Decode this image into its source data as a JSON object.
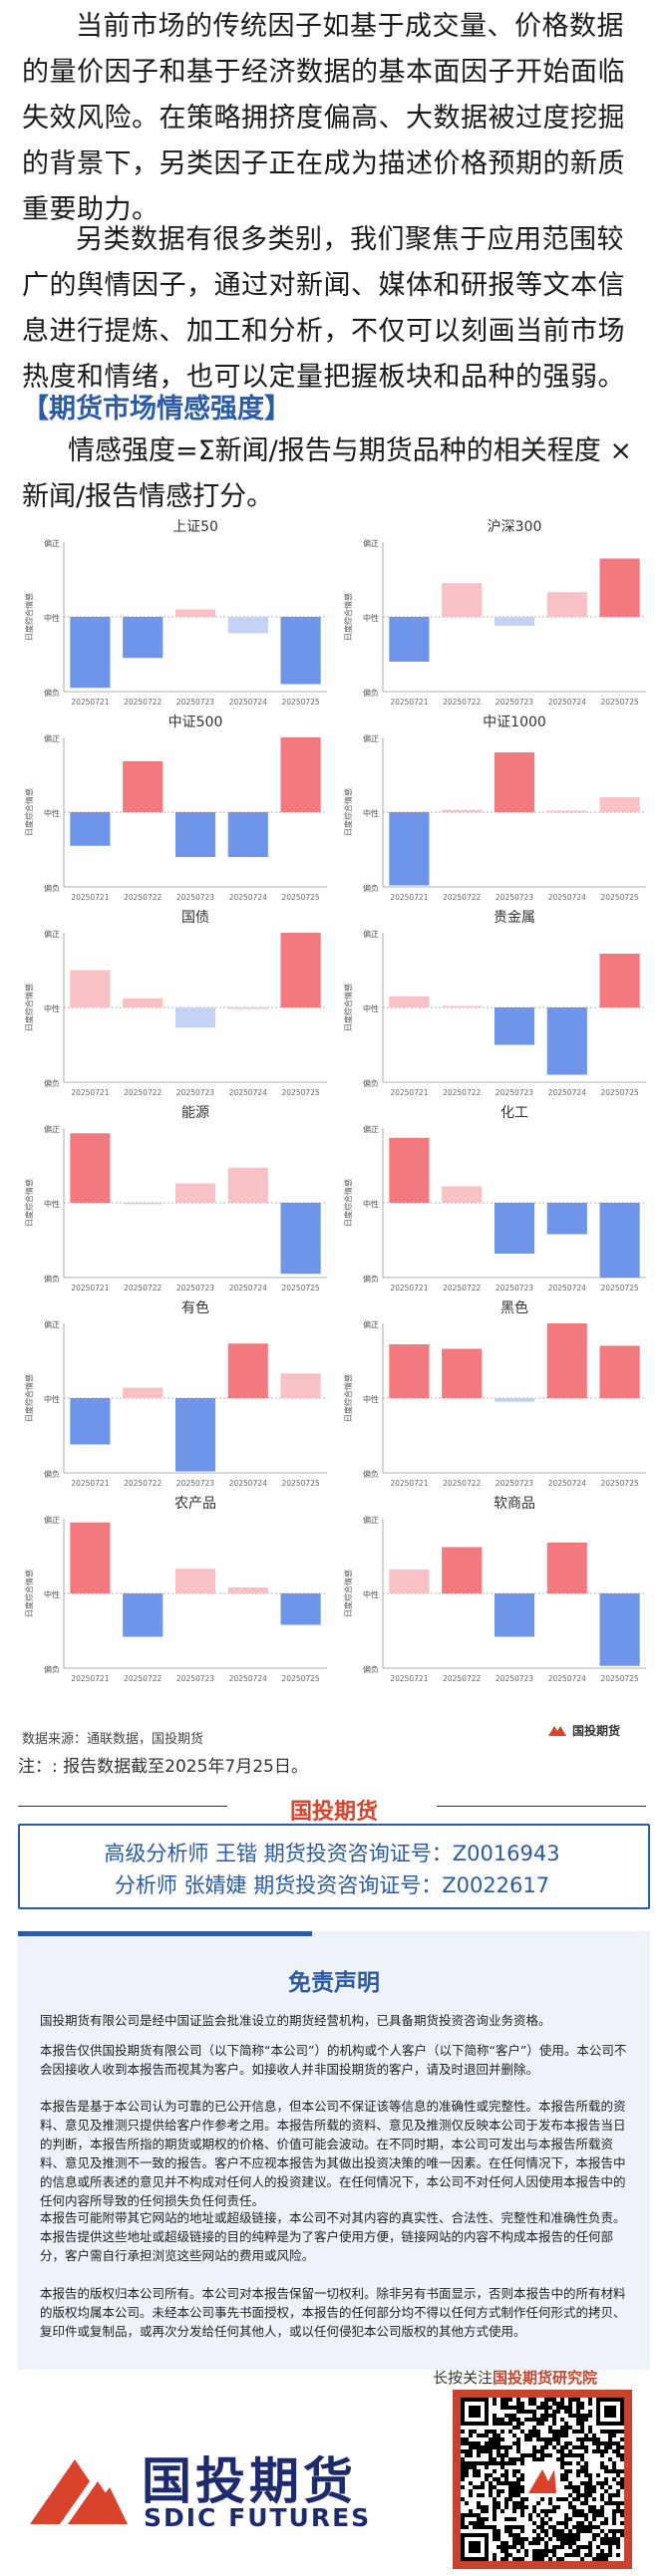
{
  "intro": {
    "p1": "当前市场的传统因子如基于成交量、价格数据的量价因子和基于经济数据的基本面因子开始面临失效风险。在策略拥挤度偏高、大数据被过度挖掘的背景下，另类因子正在成为描述价格预期的新质重要助力。",
    "p2": "另类数据有很多类别，我们聚焦于应用范围较广的舆情因子，通过对新闻、媒体和研报等文本信息进行提炼、加工和分析，不仅可以刻画当前市场热度和情绪，也可以定量把握板块和品种的强弱。"
  },
  "section": {
    "title": "【期货市场情感强度】",
    "formula": "情感强度=Σ新闻/报告与期货品种的相关程度 × 新闻/报告情感打分。"
  },
  "colors": {
    "pos_strong": "#f27a7e",
    "pos_light": "#f7c1c5",
    "neg_strong": "#6e95ea",
    "neg_light": "#c4d3f5"
  },
  "chart_labels": {
    "ylabel": "日度综合情感",
    "y_top": "偏正",
    "y_mid": "中性",
    "y_bottom": "偏负"
  },
  "chart_data": [
    {
      "type": "bar",
      "title": "上证50",
      "categories": [
        "20250721",
        "20250722",
        "20250723",
        "20250724",
        "20250725"
      ],
      "values": [
        -0.95,
        -0.55,
        0.1,
        -0.22,
        -0.9
      ],
      "ylim": [
        -1,
        1
      ]
    },
    {
      "type": "bar",
      "title": "沪深300",
      "categories": [
        "20250721",
        "20250722",
        "20250723",
        "20250724",
        "20250725"
      ],
      "values": [
        -0.6,
        0.45,
        -0.12,
        0.33,
        0.78
      ],
      "ylim": [
        -1,
        1
      ]
    },
    {
      "type": "bar",
      "title": "中证500",
      "categories": [
        "20250721",
        "20250722",
        "20250723",
        "20250724",
        "20250725"
      ],
      "values": [
        -0.45,
        0.68,
        -0.6,
        -0.6,
        1.0
      ],
      "ylim": [
        -1,
        1
      ]
    },
    {
      "type": "bar",
      "title": "中证1000",
      "categories": [
        "20250721",
        "20250722",
        "20250723",
        "20250724",
        "20250725"
      ],
      "values": [
        -0.98,
        0.03,
        0.8,
        0.02,
        0.2
      ],
      "ylim": [
        -1,
        1
      ]
    },
    {
      "type": "bar",
      "title": "国债",
      "categories": [
        "20250721",
        "20250722",
        "20250723",
        "20250724",
        "20250725"
      ],
      "values": [
        0.5,
        0.12,
        -0.27,
        0.0,
        1.0
      ],
      "ylim": [
        -1,
        1
      ]
    },
    {
      "type": "bar",
      "title": "贵金属",
      "categories": [
        "20250721",
        "20250722",
        "20250723",
        "20250724",
        "20250725"
      ],
      "values": [
        0.15,
        0.02,
        -0.5,
        -0.9,
        0.72
      ],
      "ylim": [
        -1,
        1
      ]
    },
    {
      "type": "bar",
      "title": "能源",
      "categories": [
        "20250721",
        "20250722",
        "20250723",
        "20250724",
        "20250725"
      ],
      "values": [
        0.93,
        -0.02,
        0.26,
        0.47,
        -0.95
      ],
      "ylim": [
        -1,
        1
      ]
    },
    {
      "type": "bar",
      "title": "化工",
      "categories": [
        "20250721",
        "20250722",
        "20250723",
        "20250724",
        "20250725"
      ],
      "values": [
        0.87,
        0.22,
        -0.68,
        -0.42,
        -1.0
      ],
      "ylim": [
        -1,
        1
      ]
    },
    {
      "type": "bar",
      "title": "有色",
      "categories": [
        "20250721",
        "20250722",
        "20250723",
        "20250724",
        "20250725"
      ],
      "values": [
        -0.62,
        0.14,
        -0.98,
        0.73,
        0.33
      ],
      "ylim": [
        -1,
        1
      ]
    },
    {
      "type": "bar",
      "title": "黑色",
      "categories": [
        "20250721",
        "20250722",
        "20250723",
        "20250724",
        "20250725"
      ],
      "values": [
        0.72,
        0.66,
        -0.05,
        1.0,
        0.7
      ],
      "ylim": [
        -1,
        1
      ]
    },
    {
      "type": "bar",
      "title": "农产品",
      "categories": [
        "20250721",
        "20250722",
        "20250723",
        "20250724",
        "20250725"
      ],
      "values": [
        0.95,
        -0.58,
        0.33,
        0.08,
        -0.42
      ],
      "ylim": [
        -1,
        1
      ]
    },
    {
      "type": "bar",
      "title": "软商品",
      "categories": [
        "20250721",
        "20250722",
        "20250723",
        "20250724",
        "20250725"
      ],
      "values": [
        0.32,
        0.62,
        -0.58,
        0.68,
        -0.97
      ],
      "ylim": [
        -1,
        1
      ]
    }
  ],
  "footer": {
    "source": "数据来源：通联数据，国投期货",
    "source_logo": "国投期货",
    "note": "注：: 报告数据截至2025年7月25日。",
    "brand": "国投期货",
    "analyst1": "高级分析师  王锴  期货投资咨询证号：Z0016943",
    "analyst2": "分析师  张婧婕  期货投资咨询证号：Z0022617"
  },
  "disclaimer": {
    "title": "免责声明",
    "p1": "国投期货有限公司是经中国证监会批准设立的期货经营机构，已具备期货投资咨询业务资格。",
    "p2": "本报告仅供国投期货有限公司（以下简称“本公司”）的机构或个人客户（以下简称“客户”）使用。本公司不会因接收人收到本报告而视其为客户。如接收人并非国投期货的客户，请及时退回并删除。",
    "p3": "本报告是基于本公司认为可靠的已公开信息，但本公司不保证该等信息的准确性或完整性。本报告所载的资料、意见及推测只提供给客户作参考之用。本报告所载的资料、意见及推测仅反映本公司于发布本报告当日的判断，本报告所指的期货或期权的价格、价值可能会波动。在不同时期，本公司可发出与本报告所载资料、意见及推测不一致的报告。客户不应视本报告为其做出投资决策的唯一因素。在任何情况下，本报告中的信息或所表述的意见并不构成对任何人的投资建议。在任何情况下，本公司不对任何人因使用本报告中的任何内容所导致的任何损失负任何责任。",
    "p4": "本报告可能附带其它网站的地址或超级链接，本公司不对其内容的真实性、合法性、完整性和准确性负责。本报告提供这些地址或超级链接的目的纯粹是为了客户使用方便，链接网站的内容不构成本报告的任何部分，客户需自行承担浏览这些网站的费用或风险。",
    "p5": "本报告的版权归本公司所有。本公司对本报告保留一切权利。除非另有书面显示，否则本报告中的所有材料的版权均属本公司。未经本公司事先书面授权，本报告的任何部分均不得以任何方式制作任何形式的拷贝、复印件或复制品，或再次分发给任何其他人，或以任何侵犯本公司版权的其他方式使用。"
  },
  "follow": {
    "prefix": "长按关注",
    "name": "国投期货研究院"
  },
  "logo": {
    "cn": "国投期货",
    "en": "SDIC FUTURES"
  }
}
